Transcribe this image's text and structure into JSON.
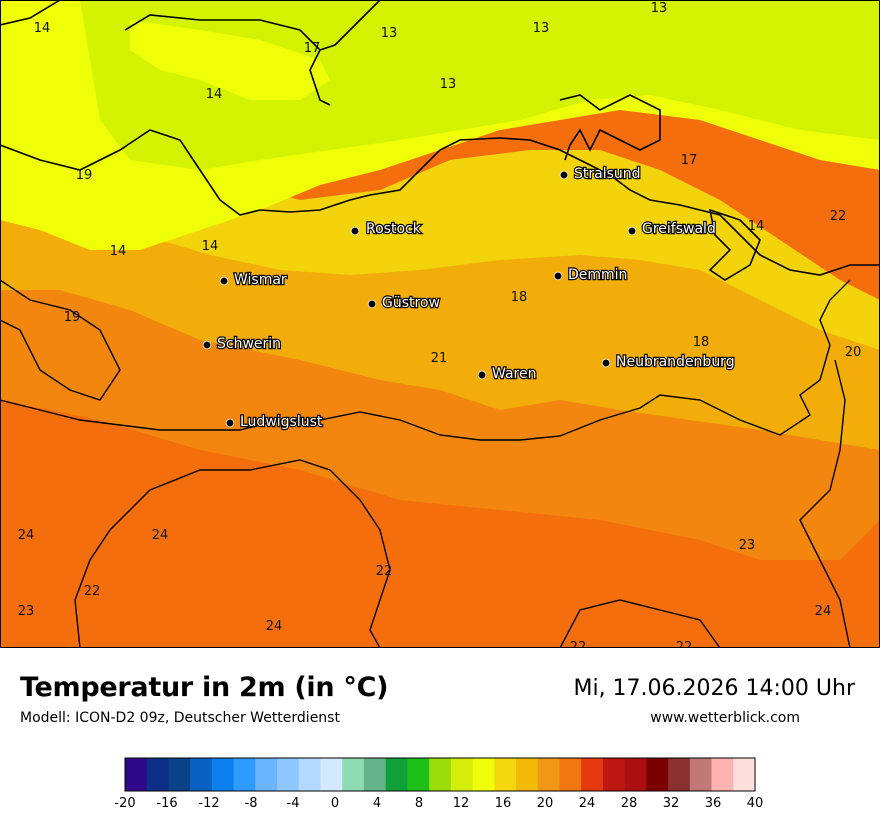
{
  "header": {
    "title": "Temperatur in 2m (in °C)",
    "subtitle": "Modell: ICON-D2 09z, Deutscher Wetterdienst",
    "datetime": "Mi, 17.06.2026 14:00 Uhr",
    "website": "www.wetterblick.com"
  },
  "cities": [
    {
      "name": "Stralsund"
    },
    {
      "name": "Rostock"
    },
    {
      "name": "Greifswald"
    },
    {
      "name": "Wismar"
    },
    {
      "name": "Demmin"
    },
    {
      "name": "Güstrow"
    },
    {
      "name": "Schwerin"
    },
    {
      "name": "Neubrandenburg"
    },
    {
      "name": "Waren"
    },
    {
      "name": "Ludwigslust"
    }
  ],
  "temperature_labels": [
    "14",
    "17",
    "13",
    "13",
    "13",
    "14",
    "13",
    "17",
    "19",
    "14",
    "14",
    "14",
    "19",
    "18",
    "18",
    "21",
    "20",
    "24",
    "24",
    "22",
    "22",
    "23",
    "24",
    "23",
    "24",
    "22",
    "22"
  ],
  "colorbar": {
    "ticks": [
      "-20",
      "-16",
      "-12",
      "-8",
      "-4",
      "0",
      "4",
      "8",
      "12",
      "16",
      "20",
      "24",
      "28",
      "32",
      "36",
      "40"
    ],
    "colors": [
      "#2e0a8a",
      "#0c2f87",
      "#0a4189",
      "#0a61c2",
      "#0a80ee",
      "#2f9bff",
      "#6bb5ff",
      "#8ec6ff",
      "#b5d8ff",
      "#d4e8ff",
      "#8fdbb4",
      "#65b38c",
      "#10a03a",
      "#1fbf1a",
      "#9adb0a",
      "#d2ee0a",
      "#efff0a",
      "#f2d80c",
      "#f2bb0a",
      "#f19718",
      "#f07712",
      "#e5380c",
      "#bd1714",
      "#aa1012",
      "#7c0000",
      "#8a3030",
      "#c27878",
      "#ffb3b0",
      "#ffdfde"
    ]
  }
}
